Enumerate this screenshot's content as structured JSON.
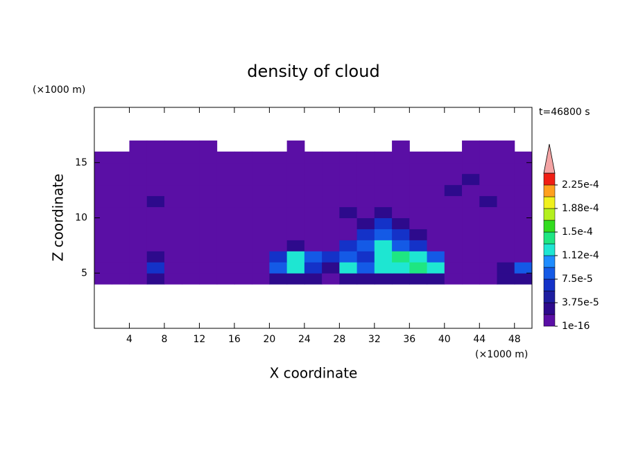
{
  "chart_data": {
    "type": "contour",
    "title": "density of cloud",
    "x_label": "X coordinate",
    "y_label": "Z coordinate",
    "x_unit": "(×1000 m)",
    "y_unit": "(×1000 m)",
    "annotation": "t=46800 s",
    "xlim": [
      0,
      50
    ],
    "ylim": [
      0,
      20
    ],
    "xticks": [
      4,
      8,
      12,
      16,
      20,
      24,
      28,
      32,
      36,
      40,
      44,
      48
    ],
    "yticks": [
      5,
      10,
      15
    ],
    "x": [
      1,
      3,
      5,
      7,
      9,
      11,
      13,
      15,
      17,
      19,
      21,
      23,
      25,
      27,
      29,
      31,
      33,
      35,
      37,
      39,
      41,
      43,
      45,
      47,
      49
    ],
    "z": [
      0.5,
      1.5,
      2.5,
      3.5,
      4.5,
      5.5,
      6.5,
      7.5,
      8.5,
      9.5,
      10.5,
      11.5,
      12.5,
      13.5,
      14.5,
      15.5,
      16.5,
      17.5,
      18.5,
      19.5
    ],
    "values": [
      [
        null,
        null,
        null,
        null,
        null,
        null,
        null,
        null,
        null,
        null,
        null,
        null,
        null,
        null,
        null,
        null,
        null,
        null,
        null,
        null,
        null,
        null,
        null,
        null,
        null
      ],
      [
        null,
        null,
        null,
        null,
        null,
        null,
        null,
        null,
        null,
        null,
        null,
        null,
        null,
        null,
        null,
        null,
        null,
        null,
        null,
        null,
        null,
        null,
        null,
        null,
        null
      ],
      [
        null,
        null,
        null,
        null,
        null,
        null,
        null,
        null,
        null,
        null,
        null,
        null,
        null,
        null,
        null,
        null,
        null,
        null,
        null,
        null,
        null,
        null,
        null,
        null,
        null
      ],
      [
        null,
        null,
        null,
        null,
        null,
        null,
        null,
        null,
        null,
        null,
        null,
        null,
        null,
        null,
        null,
        null,
        null,
        null,
        null,
        null,
        null,
        null,
        null,
        null,
        null
      ],
      [
        1e-05,
        1e-05,
        1e-05,
        2.5e-05,
        1e-05,
        1e-05,
        1e-05,
        1e-05,
        1e-05,
        1e-05,
        2.5e-05,
        2.5e-05,
        2.5e-05,
        1e-05,
        2.5e-05,
        2.5e-05,
        2.5e-05,
        2.5e-05,
        2.5e-05,
        2.5e-05,
        1e-05,
        1e-05,
        1e-05,
        2.5e-05,
        2.5e-05
      ],
      [
        1e-05,
        1e-05,
        1e-05,
        6e-05,
        1e-05,
        1e-05,
        1e-05,
        1e-05,
        1e-05,
        1e-05,
        9e-05,
        0.00012,
        6e-05,
        2.5e-05,
        0.00012,
        9e-05,
        0.00012,
        0.00012,
        0.00014,
        0.00012,
        1e-05,
        1e-05,
        1e-05,
        2.5e-05,
        9e-05
      ],
      [
        1e-05,
        1e-05,
        1e-05,
        2.5e-05,
        1e-05,
        1e-05,
        1e-05,
        1e-05,
        1e-05,
        1e-05,
        6e-05,
        0.00012,
        9e-05,
        6e-05,
        9e-05,
        6e-05,
        0.00012,
        0.00014,
        0.00012,
        9e-05,
        1e-05,
        1e-05,
        1e-05,
        1e-05,
        1e-05
      ],
      [
        1e-05,
        1e-05,
        1e-05,
        1e-05,
        1e-05,
        1e-05,
        1e-05,
        1e-05,
        1e-05,
        1e-05,
        1e-05,
        2.5e-05,
        1e-05,
        1e-05,
        6e-05,
        9e-05,
        0.00012,
        9e-05,
        6e-05,
        1e-05,
        1e-05,
        1e-05,
        1e-05,
        1e-05,
        1e-05
      ],
      [
        1e-05,
        1e-05,
        1e-05,
        1e-05,
        1e-05,
        1e-05,
        1e-05,
        1e-05,
        1e-05,
        1e-05,
        1e-05,
        1e-05,
        1e-05,
        1e-05,
        1e-05,
        6e-05,
        9e-05,
        6e-05,
        2.5e-05,
        1e-05,
        1e-05,
        1e-05,
        1e-05,
        1e-05,
        1e-05
      ],
      [
        1e-05,
        1e-05,
        1e-05,
        1e-05,
        1e-05,
        1e-05,
        1e-05,
        1e-05,
        1e-05,
        1e-05,
        1e-05,
        1e-05,
        1e-05,
        1e-05,
        1e-05,
        2.5e-05,
        6e-05,
        2.5e-05,
        1e-05,
        1e-05,
        1e-05,
        1e-05,
        1e-05,
        1e-05,
        1e-05
      ],
      [
        1e-05,
        1e-05,
        1e-05,
        1e-05,
        1e-05,
        1e-05,
        1e-05,
        1e-05,
        1e-05,
        1e-05,
        1e-05,
        1e-05,
        1e-05,
        1e-05,
        2.5e-05,
        1e-05,
        2.5e-05,
        1e-05,
        1e-05,
        1e-05,
        1e-05,
        1e-05,
        1e-05,
        1e-05,
        1e-05
      ],
      [
        1e-05,
        1e-05,
        1e-05,
        2.5e-05,
        1e-05,
        1e-05,
        1e-05,
        1e-05,
        1e-05,
        1e-05,
        1e-05,
        1e-05,
        1e-05,
        1e-05,
        1e-05,
        1e-05,
        1e-05,
        1e-05,
        1e-05,
        1e-05,
        1e-05,
        1e-05,
        2.5e-05,
        1e-05,
        1e-05
      ],
      [
        1e-05,
        1e-05,
        1e-05,
        1e-05,
        1e-05,
        1e-05,
        1e-05,
        1e-05,
        1e-05,
        1e-05,
        1e-05,
        1e-05,
        1e-05,
        1e-05,
        1e-05,
        1e-05,
        1e-05,
        1e-05,
        1e-05,
        1e-05,
        2.5e-05,
        1e-05,
        1e-05,
        1e-05,
        1e-05
      ],
      [
        1e-05,
        1e-05,
        1e-05,
        1e-05,
        1e-05,
        1e-05,
        1e-05,
        1e-05,
        1e-05,
        1e-05,
        1e-05,
        1e-05,
        1e-05,
        1e-05,
        1e-05,
        1e-05,
        1e-05,
        1e-05,
        1e-05,
        1e-05,
        1e-05,
        2.5e-05,
        1e-05,
        1e-05,
        1e-05
      ],
      [
        1e-05,
        1e-05,
        1e-05,
        1e-05,
        1e-05,
        1e-05,
        1e-05,
        1e-05,
        1e-05,
        1e-05,
        1e-05,
        1e-05,
        1e-05,
        1e-05,
        1e-05,
        1e-05,
        1e-05,
        1e-05,
        1e-05,
        1e-05,
        1e-05,
        1e-05,
        1e-05,
        1e-05,
        1e-05
      ],
      [
        1e-05,
        1e-05,
        1e-05,
        1e-05,
        1e-05,
        1e-05,
        1e-05,
        1e-05,
        1e-05,
        1e-05,
        1e-05,
        1e-05,
        1e-05,
        1e-05,
        1e-05,
        1e-05,
        1e-05,
        1e-05,
        1e-05,
        1e-05,
        1e-05,
        1e-05,
        1e-05,
        1e-05,
        1e-05
      ],
      [
        null,
        null,
        1e-05,
        1e-05,
        1e-05,
        1e-05,
        1e-05,
        null,
        null,
        null,
        null,
        1e-05,
        null,
        null,
        null,
        null,
        null,
        1e-05,
        null,
        null,
        null,
        1e-05,
        1e-05,
        1e-05,
        null
      ],
      [
        null,
        null,
        null,
        null,
        null,
        null,
        null,
        null,
        null,
        null,
        null,
        null,
        null,
        null,
        null,
        null,
        null,
        null,
        null,
        null,
        null,
        null,
        null,
        null,
        null
      ],
      [
        null,
        null,
        null,
        null,
        null,
        null,
        null,
        null,
        null,
        null,
        null,
        null,
        null,
        null,
        null,
        null,
        null,
        null,
        null,
        null,
        null,
        null,
        null,
        null,
        null
      ],
      [
        null,
        null,
        null,
        null,
        null,
        null,
        null,
        null,
        null,
        null,
        null,
        null,
        null,
        null,
        null,
        null,
        null,
        null,
        null,
        null,
        null,
        null,
        null,
        null,
        null
      ]
    ],
    "levels": [
      1e-16,
      1.875e-05,
      3.75e-05,
      5.625e-05,
      7.5e-05,
      9.375e-05,
      0.0001125,
      0.00013125,
      0.00015,
      0.00016875,
      0.0001875,
      0.00020625,
      0.000225,
      0.00024375
    ],
    "colors": [
      "#5a0fa5",
      "#2d0a8c",
      "#1e1ea0",
      "#1432c8",
      "#145ae6",
      "#1e8cff",
      "#1ee6d2",
      "#1ee682",
      "#32dc1e",
      "#b4f01e",
      "#f0f01e",
      "#ffa01e",
      "#f01e14"
    ],
    "extend_color": "#f4a4a4",
    "colorbar_ticks": [
      {
        "value": 1e-16,
        "label": "1e-16"
      },
      {
        "value": 3.75e-05,
        "label": "3.75e-5"
      },
      {
        "value": 7.5e-05,
        "label": "7.5e-5"
      },
      {
        "value": 0.0001125,
        "label": "1.12e-4"
      },
      {
        "value": 0.00015,
        "label": "1.5e-4"
      },
      {
        "value": 0.0001875,
        "label": "1.88e-4"
      },
      {
        "value": 0.000225,
        "label": "2.25e-4"
      }
    ]
  }
}
